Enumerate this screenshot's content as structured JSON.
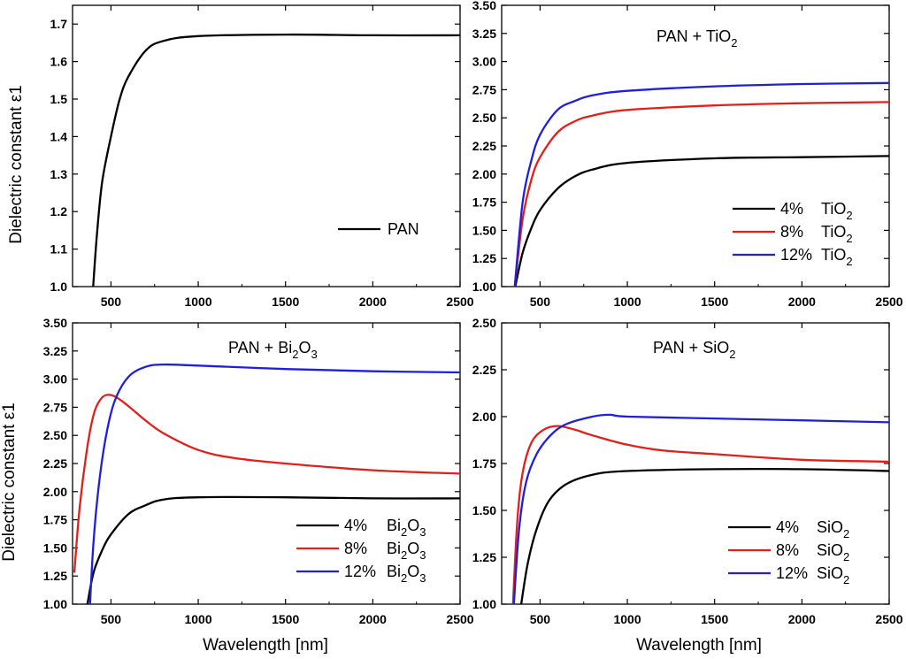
{
  "chart_data": [
    {
      "id": "pan",
      "type": "line",
      "title": "",
      "xlabel": "",
      "ylabel": "Dielectric constant ε1",
      "xlim": [
        280,
        2500
      ],
      "ylim": [
        1.0,
        1.75
      ],
      "xticks": [
        500,
        1000,
        1500,
        2000,
        2500
      ],
      "xtick_labels": [
        "500",
        "1000",
        "1500",
        "2000",
        "2500"
      ],
      "yticks": [
        1.0,
        1.1,
        1.2,
        1.3,
        1.4,
        1.5,
        1.6,
        1.7
      ],
      "ytick_labels": [
        "1.0",
        "1.1",
        "1.2",
        "1.3",
        "1.4",
        "1.5",
        "1.6",
        "1.7"
      ],
      "legend_position": "lower-right",
      "series": [
        {
          "name": "PAN",
          "label": "PAN",
          "color": "#000000",
          "points": [
            [
              398,
              1.0
            ],
            [
              420,
              1.14
            ],
            [
              450,
              1.28
            ],
            [
              500,
              1.4
            ],
            [
              550,
              1.5
            ],
            [
              600,
              1.56
            ],
            [
              700,
              1.63
            ],
            [
              800,
              1.655
            ],
            [
              1000,
              1.668
            ],
            [
              1500,
              1.672
            ],
            [
              2000,
              1.67
            ],
            [
              2500,
              1.67
            ]
          ]
        }
      ]
    },
    {
      "id": "tio2",
      "type": "line",
      "title": "PAN + TiO",
      "title_sub": "2",
      "xlabel": "",
      "ylabel": "",
      "xlim": [
        280,
        2500
      ],
      "ylim": [
        1.0,
        3.5
      ],
      "xticks": [
        500,
        1000,
        1500,
        2000,
        2500
      ],
      "xtick_labels": [
        "500",
        "1000",
        "1500",
        "2000",
        "2500"
      ],
      "yticks": [
        1.0,
        1.25,
        1.5,
        1.75,
        2.0,
        2.25,
        2.5,
        2.75,
        3.0,
        3.25,
        3.5
      ],
      "ytick_labels": [
        "1.00",
        "1.25",
        "1.50",
        "1.75",
        "2.00",
        "2.25",
        "2.50",
        "2.75",
        "3.00",
        "3.25",
        "3.50"
      ],
      "legend_position": "lower-right",
      "series": [
        {
          "name": "4% TiO2",
          "label_pct": "4%",
          "label_main": "TiO",
          "label_sub": "2",
          "color": "#000000",
          "points": [
            [
              358,
              1.0
            ],
            [
              400,
              1.3
            ],
            [
              450,
              1.52
            ],
            [
              500,
              1.68
            ],
            [
              600,
              1.87
            ],
            [
              700,
              1.98
            ],
            [
              800,
              2.04
            ],
            [
              1000,
              2.1
            ],
            [
              1500,
              2.14
            ],
            [
              2000,
              2.15
            ],
            [
              2500,
              2.16
            ]
          ]
        },
        {
          "name": "8% TiO2",
          "label_pct": "8%",
          "label_main": "TiO",
          "label_sub": "2",
          "color": "#e0201b",
          "points": [
            [
              355,
              1.0
            ],
            [
              400,
              1.6
            ],
            [
              450,
              1.95
            ],
            [
              500,
              2.15
            ],
            [
              600,
              2.37
            ],
            [
              700,
              2.47
            ],
            [
              800,
              2.52
            ],
            [
              1000,
              2.57
            ],
            [
              1500,
              2.61
            ],
            [
              2000,
              2.63
            ],
            [
              2500,
              2.64
            ]
          ]
        },
        {
          "name": "12% TiO2",
          "label_pct": "12%",
          "label_main": "TiO",
          "label_sub": "2",
          "color": "#1f1fdc",
          "points": [
            [
              355,
              1.0
            ],
            [
              400,
              1.75
            ],
            [
              450,
              2.12
            ],
            [
              500,
              2.35
            ],
            [
              600,
              2.57
            ],
            [
              700,
              2.65
            ],
            [
              800,
              2.7
            ],
            [
              1000,
              2.74
            ],
            [
              1500,
              2.78
            ],
            [
              2000,
              2.8
            ],
            [
              2500,
              2.81
            ]
          ]
        }
      ]
    },
    {
      "id": "bi2o3",
      "type": "line",
      "title": "PAN + Bi",
      "title_sub1": "2",
      "title_mid": "O",
      "title_sub2": "3",
      "xlabel": "Wavelength [nm]",
      "ylabel": "Dielectric constant ε1",
      "xlim": [
        280,
        2500
      ],
      "ylim": [
        1.0,
        3.5
      ],
      "xticks": [
        500,
        1000,
        1500,
        2000,
        2500
      ],
      "xtick_labels": [
        "500",
        "1000",
        "1500",
        "2000",
        "2500"
      ],
      "yticks": [
        1.0,
        1.25,
        1.5,
        1.75,
        2.0,
        2.25,
        2.5,
        2.75,
        3.0,
        3.25,
        3.5
      ],
      "ytick_labels": [
        "1.00",
        "1.25",
        "1.50",
        "1.75",
        "2.00",
        "2.25",
        "2.50",
        "2.75",
        "3.00",
        "3.25",
        "3.50"
      ],
      "legend_position": "lower-right",
      "series": [
        {
          "name": "4% Bi2O3",
          "label_pct": "4%",
          "label_main": "Bi",
          "label_sub": "2",
          "label_main2": "O",
          "label_sub2": "3",
          "color": "#000000",
          "points": [
            [
              365,
              1.0
            ],
            [
              400,
              1.28
            ],
            [
              450,
              1.48
            ],
            [
              500,
              1.62
            ],
            [
              600,
              1.8
            ],
            [
              700,
              1.88
            ],
            [
              800,
              1.93
            ],
            [
              1000,
              1.95
            ],
            [
              1500,
              1.95
            ],
            [
              2000,
              1.94
            ],
            [
              2500,
              1.94
            ]
          ]
        },
        {
          "name": "8% Bi2O3",
          "label_pct": "8%",
          "label_main": "Bi",
          "label_sub": "2",
          "label_main2": "O",
          "label_sub2": "3",
          "color": "#e0201b",
          "points": [
            [
              290,
              1.28
            ],
            [
              320,
              1.85
            ],
            [
              360,
              2.35
            ],
            [
              400,
              2.68
            ],
            [
              440,
              2.82
            ],
            [
              480,
              2.86
            ],
            [
              530,
              2.84
            ],
            [
              600,
              2.76
            ],
            [
              700,
              2.63
            ],
            [
              800,
              2.52
            ],
            [
              1000,
              2.37
            ],
            [
              1200,
              2.3
            ],
            [
              1500,
              2.25
            ],
            [
              2000,
              2.19
            ],
            [
              2500,
              2.16
            ]
          ]
        },
        {
          "name": "12% Bi2O3",
          "label_pct": "12%",
          "label_main": "Bi",
          "label_sub": "2",
          "label_main2": "O",
          "label_sub2": "3",
          "color": "#1f1fdc",
          "points": [
            [
              380,
              1.0
            ],
            [
              400,
              1.55
            ],
            [
              430,
              2.05
            ],
            [
              470,
              2.48
            ],
            [
              520,
              2.8
            ],
            [
              600,
              3.02
            ],
            [
              700,
              3.11
            ],
            [
              800,
              3.13
            ],
            [
              1000,
              3.12
            ],
            [
              1500,
              3.09
            ],
            [
              2000,
              3.07
            ],
            [
              2500,
              3.06
            ]
          ]
        }
      ]
    },
    {
      "id": "sio2",
      "type": "line",
      "title": "PAN + SiO",
      "title_sub": "2",
      "xlabel": "Wavelength [nm]",
      "ylabel": "",
      "xlim": [
        280,
        2500
      ],
      "ylim": [
        1.0,
        2.5
      ],
      "xticks": [
        500,
        1000,
        1500,
        2000,
        2500
      ],
      "xtick_labels": [
        "500",
        "1000",
        "1500",
        "2000",
        "2500"
      ],
      "yticks": [
        1.0,
        1.25,
        1.5,
        1.75,
        2.0,
        2.25,
        2.5
      ],
      "ytick_labels": [
        "1.00",
        "1.25",
        "1.50",
        "1.75",
        "2.00",
        "2.25",
        "2.50"
      ],
      "legend_position": "lower-right",
      "series": [
        {
          "name": "4% SiO2",
          "label_pct": "4%",
          "label_main": "SiO",
          "label_sub": "2",
          "color": "#000000",
          "points": [
            [
              392,
              1.0
            ],
            [
              430,
              1.22
            ],
            [
              480,
              1.4
            ],
            [
              550,
              1.55
            ],
            [
              650,
              1.64
            ],
            [
              800,
              1.69
            ],
            [
              1000,
              1.71
            ],
            [
              1500,
              1.72
            ],
            [
              2000,
              1.72
            ],
            [
              2500,
              1.71
            ]
          ]
        },
        {
          "name": "8% SiO2",
          "label_pct": "8%",
          "label_main": "SiO",
          "label_sub": "2",
          "color": "#e0201b",
          "points": [
            [
              345,
              1.0
            ],
            [
              370,
              1.45
            ],
            [
              400,
              1.7
            ],
            [
              450,
              1.86
            ],
            [
              520,
              1.93
            ],
            [
              600,
              1.95
            ],
            [
              700,
              1.93
            ],
            [
              800,
              1.9
            ],
            [
              1000,
              1.85
            ],
            [
              1200,
              1.82
            ],
            [
              1500,
              1.8
            ],
            [
              2000,
              1.77
            ],
            [
              2500,
              1.76
            ]
          ]
        },
        {
          "name": "12% SiO2",
          "label_pct": "12%",
          "label_main": "SiO",
          "label_sub": "2",
          "color": "#1f1fdc",
          "points": [
            [
              350,
              1.0
            ],
            [
              380,
              1.4
            ],
            [
              420,
              1.65
            ],
            [
              480,
              1.8
            ],
            [
              560,
              1.9
            ],
            [
              650,
              1.96
            ],
            [
              800,
              2.0
            ],
            [
              900,
              2.01
            ],
            [
              1000,
              2.0
            ],
            [
              1500,
              1.99
            ],
            [
              2000,
              1.98
            ],
            [
              2500,
              1.97
            ]
          ]
        }
      ]
    }
  ]
}
